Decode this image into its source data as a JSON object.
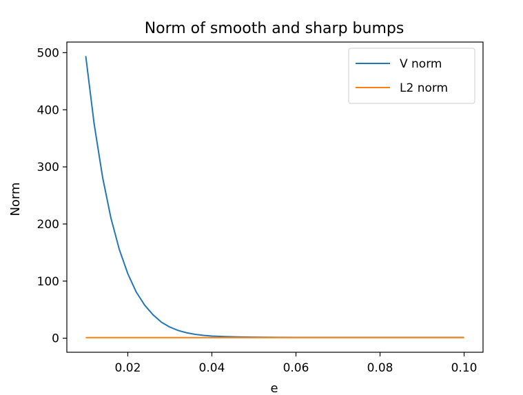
{
  "chart_data": {
    "type": "line",
    "title": "Norm of smooth and sharp bumps",
    "xlabel": "e",
    "ylabel": "Norm",
    "xlim": [
      0.0055,
      0.1045
    ],
    "ylim": [
      -24.6,
      518.6
    ],
    "xticks": [
      0.02,
      0.04,
      0.06,
      0.08,
      0.1
    ],
    "xtick_labels": [
      "0.02",
      "0.04",
      "0.06",
      "0.08",
      "0.10"
    ],
    "yticks": [
      0,
      100,
      200,
      300,
      400,
      500
    ],
    "ytick_labels": [
      "0",
      "100",
      "200",
      "300",
      "400",
      "500"
    ],
    "grid": false,
    "legend_position": "top-right",
    "series": [
      {
        "name": "V norm",
        "color": "#1f77b4",
        "x": [
          0.01,
          0.012,
          0.014,
          0.016,
          0.018,
          0.02,
          0.022,
          0.024,
          0.026,
          0.028,
          0.03,
          0.032,
          0.034,
          0.036,
          0.038,
          0.04,
          0.043,
          0.046,
          0.05,
          0.055,
          0.06,
          0.07,
          0.08,
          0.09,
          0.1
        ],
        "y": [
          494,
          375,
          282,
          210,
          155,
          113,
          81,
          58,
          41,
          28,
          19.5,
          13.5,
          9.5,
          6.8,
          5.0,
          3.8,
          2.8,
          2.2,
          1.8,
          1.5,
          1.4,
          1.3,
          1.3,
          1.3,
          1.3
        ]
      },
      {
        "name": "L2 norm",
        "color": "#ff7f0e",
        "x": [
          0.01,
          0.1
        ],
        "y": [
          1.0,
          1.0
        ]
      }
    ]
  }
}
